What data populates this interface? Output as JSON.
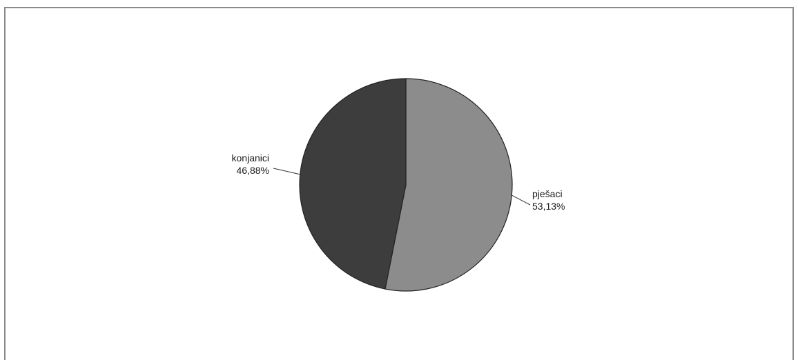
{
  "chart_data": {
    "type": "pie",
    "title": "",
    "slices": [
      {
        "label": "pješaci",
        "value": 53.13,
        "value_label": "53,13%",
        "color": "#8c8c8c"
      },
      {
        "label": "konjanici",
        "value": 46.88,
        "value_label": "46,88%",
        "color": "#3d3d3d"
      }
    ],
    "start_angle_deg": 0,
    "direction": "clockwise",
    "slice_outline_color": "#222222",
    "legend": "none",
    "labels": "outside-with-leader-lines"
  }
}
